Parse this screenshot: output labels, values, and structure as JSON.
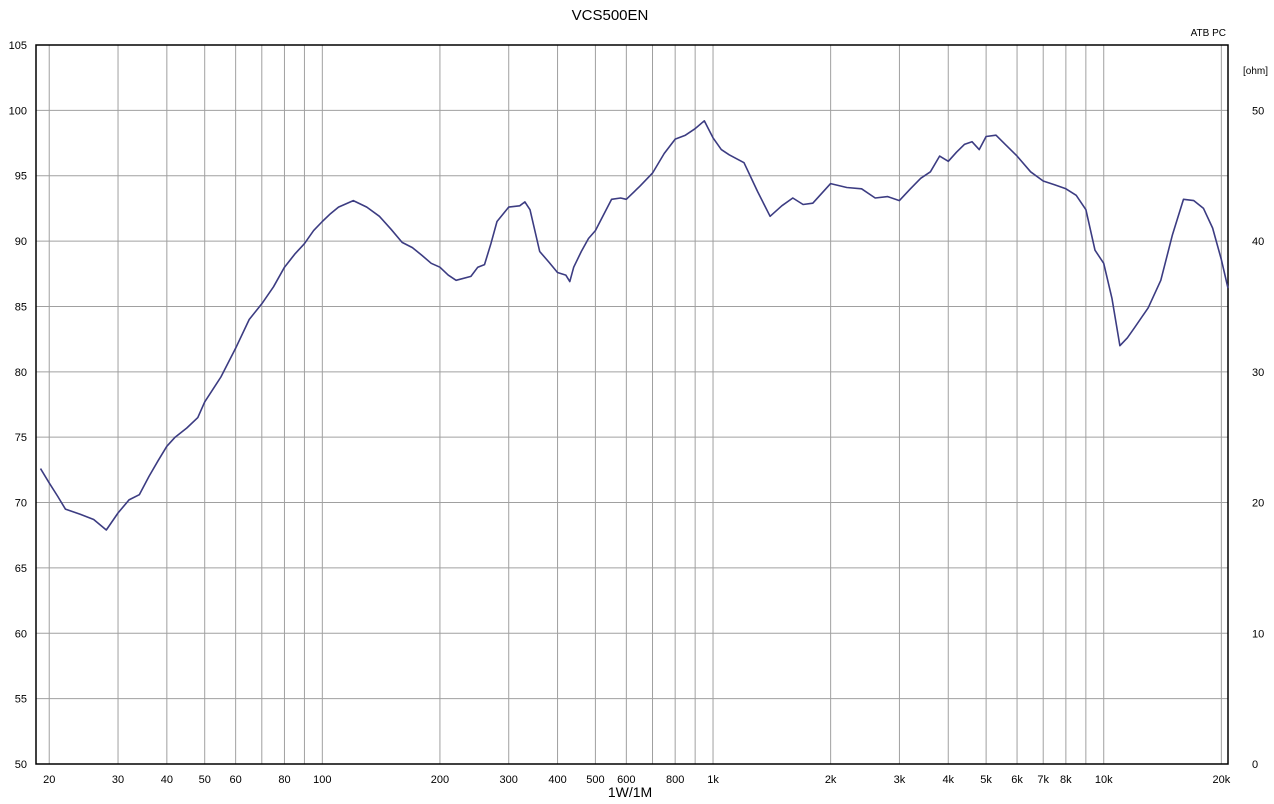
{
  "chart_data": {
    "type": "line",
    "title": "VCS500EN",
    "corner_label": "ATB PC",
    "right_axis_unit": "[ohm]",
    "xlabel": "1W/1M",
    "ylabel": "",
    "x_scale": "log",
    "xlim": [
      18.5,
      20800
    ],
    "ylim": [
      50,
      105
    ],
    "y2lim": [
      0,
      55
    ],
    "grid": true,
    "x_ticks": [
      {
        "value": 20,
        "label": "20"
      },
      {
        "value": 30,
        "label": "30"
      },
      {
        "value": 40,
        "label": "40"
      },
      {
        "value": 50,
        "label": "50"
      },
      {
        "value": 60,
        "label": "60"
      },
      {
        "value": 80,
        "label": "80"
      },
      {
        "value": 100,
        "label": "100"
      },
      {
        "value": 200,
        "label": "200"
      },
      {
        "value": 300,
        "label": "300"
      },
      {
        "value": 400,
        "label": "400"
      },
      {
        "value": 500,
        "label": "500"
      },
      {
        "value": 600,
        "label": "600"
      },
      {
        "value": 800,
        "label": "800"
      },
      {
        "value": 1000,
        "label": "1k"
      },
      {
        "value": 2000,
        "label": "2k"
      },
      {
        "value": 3000,
        "label": "3k"
      },
      {
        "value": 4000,
        "label": "4k"
      },
      {
        "value": 5000,
        "label": "5k"
      },
      {
        "value": 6000,
        "label": "6k"
      },
      {
        "value": 7000,
        "label": "7k"
      },
      {
        "value": 8000,
        "label": "8k"
      },
      {
        "value": 10000,
        "label": "10k"
      },
      {
        "value": 20000,
        "label": "20k"
      }
    ],
    "x_gridlines": [
      20,
      30,
      40,
      50,
      60,
      70,
      80,
      90,
      100,
      200,
      300,
      400,
      500,
      600,
      700,
      800,
      900,
      1000,
      2000,
      3000,
      4000,
      5000,
      6000,
      7000,
      8000,
      9000,
      10000,
      20000
    ],
    "y_ticks": [
      50,
      55,
      60,
      65,
      70,
      75,
      80,
      85,
      90,
      95,
      100,
      105
    ],
    "y2_ticks": [
      0,
      10,
      20,
      30,
      40,
      50
    ],
    "line_color": "#3c3c82",
    "grid_color": "#a0a0a0",
    "series": [
      {
        "x": [
          19,
          20,
          21,
          22,
          24,
          26,
          28,
          30,
          32,
          34,
          36,
          38,
          40,
          42,
          45,
          48,
          50,
          55,
          60,
          65,
          70,
          75,
          80,
          85,
          90,
          95,
          100,
          105,
          110,
          120,
          130,
          140,
          150,
          160,
          170,
          180,
          190,
          200,
          210,
          220,
          240,
          250,
          260,
          270,
          280,
          300,
          320,
          330,
          340,
          360,
          380,
          400,
          420,
          430,
          440,
          460,
          480,
          500,
          520,
          550,
          580,
          600,
          650,
          700,
          750,
          800,
          850,
          900,
          950,
          1000,
          1050,
          1100,
          1200,
          1300,
          1400,
          1500,
          1600,
          1700,
          1800,
          2000,
          2200,
          2400,
          2600,
          2800,
          3000,
          3200,
          3400,
          3600,
          3800,
          4000,
          4200,
          4400,
          4600,
          4800,
          5000,
          5300,
          5600,
          6000,
          6500,
          7000,
          7500,
          8000,
          8500,
          9000,
          9500,
          10000,
          10500,
          11000,
          11500,
          12000,
          13000,
          14000,
          15000,
          16000,
          17000,
          18000,
          19000,
          20000,
          20800
        ],
        "y": [
          72.6,
          71.5,
          70.5,
          69.5,
          69.1,
          68.7,
          67.9,
          69.2,
          70.2,
          70.6,
          72.0,
          73.2,
          74.3,
          75.0,
          75.7,
          76.5,
          77.7,
          79.6,
          81.8,
          84.0,
          85.2,
          86.5,
          88.0,
          89.0,
          89.8,
          90.8,
          91.5,
          92.1,
          92.6,
          93.1,
          92.6,
          91.9,
          90.9,
          89.9,
          89.5,
          88.9,
          88.3,
          88.0,
          87.4,
          87.0,
          87.3,
          88.0,
          88.2,
          89.8,
          91.5,
          92.6,
          92.7,
          93.0,
          92.4,
          89.2,
          88.4,
          87.6,
          87.4,
          86.9,
          88.0,
          89.2,
          90.2,
          90.8,
          91.8,
          93.2,
          93.3,
          93.2,
          94.2,
          95.2,
          96.7,
          97.8,
          98.1,
          98.6,
          99.2,
          97.9,
          97.0,
          96.6,
          96.0,
          93.8,
          91.9,
          92.7,
          93.3,
          92.8,
          92.9,
          94.4,
          94.1,
          94.0,
          93.3,
          93.4,
          93.1,
          94.0,
          94.8,
          95.3,
          96.5,
          96.1,
          96.8,
          97.4,
          97.6,
          97.0,
          98.0,
          98.1,
          97.4,
          96.5,
          95.3,
          94.6,
          94.3,
          94.0,
          93.5,
          92.4,
          89.3,
          88.3,
          85.6,
          82.0,
          82.6,
          83.4,
          84.9,
          87.0,
          90.5,
          93.2,
          93.1,
          92.5,
          91.0,
          88.6,
          86.4
        ]
      }
    ]
  }
}
